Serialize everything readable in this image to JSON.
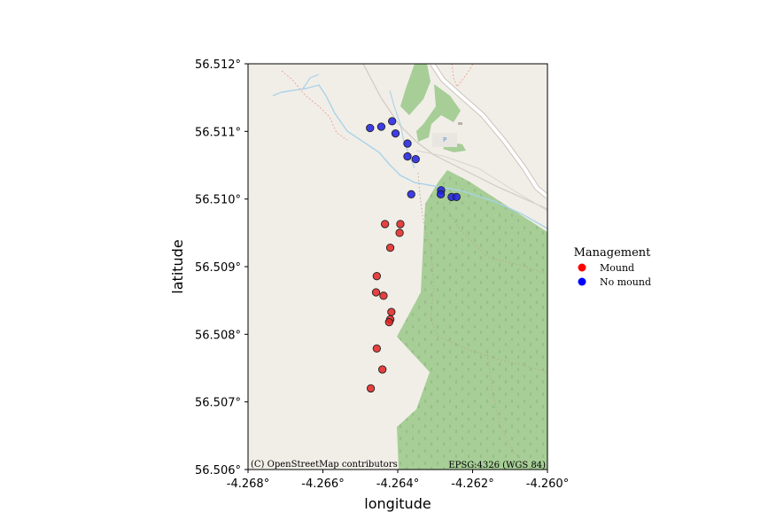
{
  "chart_data": {
    "type": "scatter",
    "xlabel": "longitude",
    "ylabel": "latitude",
    "xlim": [
      -4.268,
      -4.26
    ],
    "ylim": [
      56.506,
      56.512
    ],
    "xticks": [
      "-4.268°",
      "-4.266°",
      "-4.264°",
      "-4.262°",
      "-4.260°"
    ],
    "yticks": [
      "56.512°",
      "56.511°",
      "56.510°",
      "56.509°",
      "56.508°",
      "56.507°",
      "56.506°"
    ],
    "basemap_credit": "(C) OpenStreetMap contributors",
    "crs_label": "EPSG:4326 (WGS 84)",
    "legend": {
      "title": "Management",
      "placement": "right",
      "entries": [
        {
          "label": "Mound",
          "color": "#e32222"
        },
        {
          "label": "No mound",
          "color": "#1e1ee6"
        }
      ]
    },
    "series": [
      {
        "name": "Mound",
        "color": "#e32222",
        "points": [
          [
            -4.26434,
            56.50963
          ],
          [
            -4.26393,
            56.50963
          ],
          [
            -4.26395,
            56.5095
          ],
          [
            -4.2642,
            56.50928
          ],
          [
            -4.26456,
            56.50886
          ],
          [
            -4.26458,
            56.50862
          ],
          [
            -4.26438,
            56.50857
          ],
          [
            -4.26417,
            56.50833
          ],
          [
            -4.2642,
            56.50822
          ],
          [
            -4.26423,
            56.50818
          ],
          [
            -4.26456,
            56.50779
          ],
          [
            -4.26441,
            56.50748
          ],
          [
            -4.26472,
            56.5072
          ]
        ]
      },
      {
        "name": "No mound",
        "color": "#1e1ee6",
        "points": [
          [
            -4.26474,
            56.51105
          ],
          [
            -4.26444,
            56.51107
          ],
          [
            -4.26415,
            56.51115
          ],
          [
            -4.26406,
            56.51097
          ],
          [
            -4.26374,
            56.51082
          ],
          [
            -4.26374,
            56.51063
          ],
          [
            -4.26352,
            56.51059
          ],
          [
            -4.26364,
            56.51007
          ],
          [
            -4.26284,
            56.51013
          ],
          [
            -4.26285,
            56.51007
          ],
          [
            -4.26256,
            56.51003
          ],
          [
            -4.26243,
            56.51003
          ]
        ]
      }
    ]
  },
  "map_colors": {
    "land": "#f1eee8",
    "forest": "#a7ce97",
    "forest_dot": "#93bd83",
    "water": "#a9d3e8",
    "road": "#d4d0c9",
    "road_fill": "#ffffff",
    "path": "#e7a392",
    "track": "#b8a48a"
  }
}
